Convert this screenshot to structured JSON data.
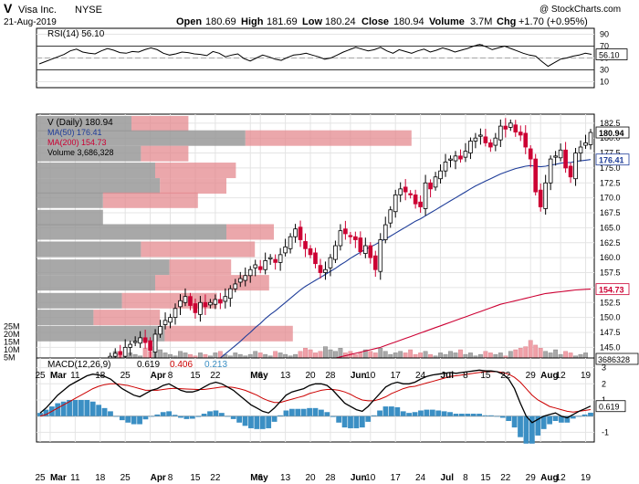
{
  "chart_data": {
    "type": "candlestick",
    "header": {
      "symbol": "V",
      "name": "Visa Inc.",
      "exchange": "NYSE",
      "date": "21-Aug-2019",
      "source": "@ StockCharts.com",
      "open_label": "Open",
      "open": "180.69",
      "high_label": "High",
      "high": "181.69",
      "low_label": "Low",
      "low": "180.24",
      "close_label": "Close",
      "close": "180.94",
      "volume_label": "Volume",
      "volume": "3.7M",
      "chg_label": "Chg",
      "chg": "+1.70 (+0.95%)"
    },
    "colors": {
      "up": "#000000",
      "down": "#cc0033",
      "ma50": "#1f3d99",
      "ma200": "#cc0033",
      "volume_up": "#a9a9a9",
      "volume_down": "#f0a0a8",
      "macd_hist": "#3b8fc4",
      "macd_line": "#000000",
      "macd_signal": "#cc0000",
      "vbp_up": "#999999",
      "vbp_down": "#e48a8f",
      "grid": "#e4e4e4"
    },
    "rsi": {
      "label": "RSI(14) 56.10",
      "value": "56.10",
      "ticks": [
        90,
        70,
        50,
        30,
        10
      ],
      "overbought": 70,
      "oversold": 30,
      "ylim": [
        0,
        100
      ],
      "values": [
        40,
        44,
        48,
        52,
        56,
        62,
        65,
        60,
        58,
        57,
        62,
        66,
        63,
        59,
        58,
        61,
        60,
        64,
        67,
        64,
        58,
        55,
        57,
        60,
        59,
        57,
        56,
        54,
        61,
        58,
        52,
        55,
        57,
        49,
        45,
        50,
        55,
        52,
        48,
        46,
        51,
        55,
        56,
        58,
        55,
        52,
        48,
        50,
        55,
        60,
        64,
        68,
        65,
        62,
        64,
        68,
        62,
        58,
        64,
        61,
        58,
        62,
        65,
        60,
        63,
        67,
        64,
        60,
        63,
        66,
        70,
        73,
        69,
        64,
        67,
        70,
        66,
        62,
        58,
        55,
        53,
        44,
        36,
        42,
        48,
        50,
        53,
        55,
        58,
        56.1
      ]
    },
    "price": {
      "label": "V (Daily) 180.94",
      "ma50_label": "MA(50) 176.41",
      "ma200_label": "MA(200) 154.73",
      "volume_label": "Volume 3,686,328",
      "ylim": [
        142,
        184
      ],
      "ticks": [
        182.5,
        180.0,
        177.5,
        175.0,
        172.5,
        170.0,
        167.5,
        165.0,
        162.5,
        160.0,
        157.5,
        155.0,
        152.5,
        150.0,
        147.5,
        145.0
      ],
      "tick_labels": [
        "182.5",
        "180.0",
        "177.5",
        "175.0",
        "172.5",
        "170.0",
        "167.5",
        "165.0",
        "162.5",
        "160.0",
        "157.5",
        "155.0",
        "152.5",
        "150.0",
        "147.5",
        "145.0"
      ],
      "last_price": "180.94",
      "last_ma50": "176.41",
      "last_ma200": "154.73",
      "last_volume": "3686328",
      "closes": [
        143.5,
        144.0,
        143.8,
        145.0,
        145.5,
        146.0,
        146.6,
        145.8,
        144.5,
        147.2,
        148.5,
        149.5,
        150.0,
        151.5,
        152.8,
        153.5,
        152.0,
        150.8,
        152.5,
        151.8,
        152.5,
        153.0,
        152.4,
        153.5,
        154.8,
        155.6,
        156.5,
        157.0,
        158.0,
        158.8,
        158.0,
        159.5,
        160.0,
        159.2,
        160.5,
        161.8,
        163.5,
        164.8,
        163.0,
        161.5,
        160.5,
        159.0,
        157.5,
        158.0,
        160.0,
        162.0,
        164.5,
        164.0,
        163.5,
        163.0,
        161.0,
        162.0,
        160.0,
        158.0,
        163.0,
        165.5,
        168.0,
        170.5,
        171.5,
        171.0,
        170.5,
        169.0,
        168.5,
        172.5,
        171.5,
        173.5,
        174.5,
        176.0,
        176.5,
        177.0,
        176.5,
        177.8,
        179.5,
        180.0,
        180.5,
        179.2,
        178.5,
        180.0,
        182.0,
        181.5,
        182.5,
        181.0,
        180.5,
        178.5,
        176.5,
        171.0,
        168.5,
        172.5,
        176.5,
        177.0,
        178.0,
        175.0,
        173.5,
        177.5,
        178.5,
        179.2,
        180.94
      ],
      "ma50": [
        126.5,
        127.3,
        128.1,
        128.9,
        129.6,
        130.4,
        131.2,
        131.9,
        132.6,
        133.4,
        134.2,
        135.0,
        135.8,
        136.6,
        137.4,
        138.2,
        139.0,
        139.7,
        140.5,
        141.2,
        141.9,
        142.6,
        143.2,
        143.9,
        144.6,
        145.3,
        146.0,
        146.8,
        147.5,
        148.3,
        149.0,
        149.8,
        150.5,
        151.1,
        151.8,
        152.5,
        153.2,
        153.9,
        154.6,
        155.2,
        155.7,
        156.2,
        156.7,
        157.2,
        157.7,
        158.2,
        158.8,
        159.3,
        159.9,
        160.4,
        160.9,
        161.4,
        161.8,
        162.2,
        162.7,
        163.1,
        163.6,
        164.1,
        164.6,
        165.1,
        165.6,
        166.1,
        166.5,
        167.0,
        167.5,
        168.0,
        168.5,
        169.0,
        169.5,
        170.0,
        170.5,
        171.0,
        171.5,
        172.0,
        172.4,
        172.8,
        173.2,
        173.6,
        174.0,
        174.3,
        174.6,
        174.9,
        175.1,
        175.3,
        175.4,
        175.3,
        175.2,
        175.3,
        175.5,
        175.6,
        175.8,
        175.9,
        175.9,
        176.1,
        176.2,
        176.3,
        176.41
      ],
      "ma200": [
        138.6,
        138.7,
        138.8,
        138.9,
        139.0,
        139.1,
        139.2,
        139.3,
        139.4,
        139.5,
        139.6,
        139.7,
        139.8,
        139.9,
        140.0,
        140.1,
        140.2,
        140.3,
        140.4,
        140.5,
        140.6,
        140.7,
        140.8,
        140.9,
        141.0,
        141.1,
        141.2,
        141.3,
        141.4,
        141.5,
        141.6,
        141.7,
        141.8,
        141.9,
        142.0,
        142.1,
        142.2,
        142.3,
        142.4,
        142.5,
        142.6,
        142.7,
        142.8,
        142.9,
        143.0,
        143.2,
        143.4,
        143.6,
        143.8,
        144.0,
        144.2,
        144.4,
        144.6,
        144.8,
        145.0,
        145.3,
        145.6,
        145.9,
        146.2,
        146.5,
        146.8,
        147.1,
        147.4,
        147.7,
        148.0,
        148.3,
        148.6,
        148.9,
        149.2,
        149.5,
        149.8,
        150.1,
        150.4,
        150.7,
        151.0,
        151.3,
        151.6,
        151.9,
        152.2,
        152.4,
        152.6,
        152.8,
        153.0,
        153.2,
        153.4,
        153.6,
        153.8,
        154.0,
        154.1,
        154.2,
        154.3,
        154.4,
        154.5,
        154.6,
        154.65,
        154.7,
        154.73
      ],
      "volume_ticks": [
        "25M",
        "20M",
        "15M",
        "10M",
        "5M"
      ],
      "volume_tick_values": [
        25,
        20,
        15,
        10,
        5
      ],
      "volume_max_m": 30,
      "volumes_m": [
        9,
        7,
        6,
        8,
        7,
        6,
        11,
        9,
        12,
        10,
        8,
        7,
        6,
        9,
        8,
        7,
        6,
        8,
        7,
        6,
        8,
        9,
        7,
        6,
        8,
        7,
        6,
        7,
        9,
        8,
        7,
        6,
        9,
        8,
        7,
        6,
        7,
        9,
        11,
        10,
        8,
        9,
        12,
        10,
        9,
        11,
        8,
        9,
        7,
        8,
        10,
        9,
        8,
        11,
        9,
        7,
        8,
        9,
        8,
        10,
        7,
        8,
        9,
        7,
        6,
        8,
        7,
        9,
        8,
        10,
        7,
        8,
        6,
        7,
        9,
        8,
        7,
        8,
        6,
        9,
        10,
        11,
        12,
        16,
        13,
        11,
        9,
        8,
        10,
        7,
        9,
        8,
        6,
        7,
        8,
        4
      ],
      "volume_by_price": [
        {
          "price": 182.4,
          "up": 20,
          "down": 12
        },
        {
          "price": 180.0,
          "up": 44,
          "down": 35
        },
        {
          "price": 177.4,
          "up": 22,
          "down": 10
        },
        {
          "price": 174.6,
          "up": 25,
          "down": 17
        },
        {
          "price": 172.0,
          "up": 26,
          "down": 14
        },
        {
          "price": 169.6,
          "up": 14,
          "down": 20
        },
        {
          "price": 166.7,
          "up": 14,
          "down": 0
        },
        {
          "price": 164.3,
          "up": 40,
          "down": 10
        },
        {
          "price": 161.4,
          "up": 22,
          "down": 24
        },
        {
          "price": 158.4,
          "up": 28,
          "down": 13
        },
        {
          "price": 155.8,
          "up": 25,
          "down": 24
        },
        {
          "price": 152.8,
          "up": 18,
          "down": 20
        },
        {
          "price": 150.0,
          "up": 12,
          "down": 14
        },
        {
          "price": 147.3,
          "up": 27,
          "down": 27
        }
      ],
      "x_ticks": [
        {
          "i": 0,
          "label": "25"
        },
        {
          "i": 2,
          "label": "Mar"
        },
        {
          "i": 7,
          "label": "11"
        },
        {
          "i": 12,
          "label": "18"
        },
        {
          "i": 17,
          "label": "25"
        },
        {
          "i": 22,
          "label": "Apr"
        },
        {
          "i": 26,
          "label": "8"
        },
        {
          "i": 31,
          "label": "15"
        },
        {
          "i": 35,
          "label": "22"
        },
        {
          "i": 42,
          "label": "May"
        },
        {
          "i": 44,
          "label": "6"
        },
        {
          "i": 49,
          "label": "13"
        },
        {
          "i": 54,
          "label": "20"
        },
        {
          "i": 58,
          "label": "28"
        },
        {
          "i": 62,
          "label": "Jun"
        },
        {
          "i": 66,
          "label": "10"
        },
        {
          "i": 71,
          "label": "17"
        },
        {
          "i": 76,
          "label": "24"
        },
        {
          "i": 80,
          "label": "Jul"
        },
        {
          "i": 85,
          "label": "8"
        },
        {
          "i": 89,
          "label": "15"
        },
        {
          "i": 93,
          "label": "22"
        },
        {
          "i": 98,
          "label": "29"
        },
        {
          "i": 100,
          "label": "Aug"
        },
        {
          "i": 104,
          "label": "12"
        },
        {
          "i": 109,
          "label": "19"
        }
      ],
      "bold_x_ticks": [
        "Mar",
        "Apr",
        "May",
        "Jun",
        "Jul",
        "Aug"
      ]
    },
    "macd": {
      "label": "MACD(12,26,9)",
      "macd": "0.619",
      "signal": "0.406",
      "hist": "0.213",
      "last_macd": "0.619",
      "ylim": [
        -1.6,
        3.6
      ],
      "ticks": [
        3,
        2,
        1,
        0,
        -1
      ],
      "tick_labels": [
        "3",
        "2",
        "1",
        "",
        "-1"
      ],
      "macd_values": [
        0.2,
        0.5,
        0.9,
        1.3,
        1.6,
        1.9,
        2.1,
        2.3,
        2.5,
        2.6,
        2.55,
        2.45,
        2.3,
        2.0,
        1.7,
        1.5,
        1.3,
        1.2,
        1.4,
        1.6,
        1.7,
        1.9,
        2.0,
        1.8,
        1.6,
        1.5,
        1.5,
        1.6,
        1.8,
        2.0,
        2.1,
        2.0,
        1.8,
        1.6,
        1.3,
        1.0,
        0.7,
        0.5,
        0.3,
        0.2,
        0.5,
        0.9,
        1.3,
        1.5,
        1.6,
        1.7,
        1.9,
        2.0,
        2.0,
        1.9,
        1.6,
        1.2,
        0.8,
        0.6,
        0.4,
        0.3,
        0.6,
        1.0,
        1.4,
        1.8,
        2.0,
        2.1,
        2.0,
        2.0,
        2.1,
        2.3,
        2.45,
        2.55,
        2.6,
        2.65,
        2.7,
        2.65,
        2.7,
        2.75,
        2.8,
        2.85,
        2.8,
        2.8,
        2.75,
        2.6,
        2.3,
        1.7,
        0.8,
        0.0,
        -0.4,
        -0.2,
        0.0,
        0.1,
        0.2,
        0.0,
        -0.1,
        0.1,
        0.3,
        0.45,
        0.619
      ],
      "signal_values": [
        0.0,
        0.1,
        0.3,
        0.5,
        0.7,
        0.9,
        1.1,
        1.3,
        1.5,
        1.7,
        1.85,
        1.95,
        2.0,
        2.0,
        1.95,
        1.9,
        1.8,
        1.7,
        1.6,
        1.6,
        1.6,
        1.65,
        1.7,
        1.72,
        1.7,
        1.68,
        1.66,
        1.65,
        1.65,
        1.7,
        1.75,
        1.8,
        1.8,
        1.78,
        1.7,
        1.6,
        1.45,
        1.3,
        1.1,
        0.95,
        0.85,
        0.85,
        0.95,
        1.05,
        1.15,
        1.25,
        1.4,
        1.5,
        1.6,
        1.65,
        1.65,
        1.6,
        1.5,
        1.35,
        1.15,
        1.0,
        0.95,
        0.95,
        1.05,
        1.2,
        1.4,
        1.55,
        1.7,
        1.8,
        1.85,
        1.95,
        2.05,
        2.15,
        2.25,
        2.35,
        2.45,
        2.5,
        2.55,
        2.6,
        2.65,
        2.7,
        2.75,
        2.75,
        2.75,
        2.7,
        2.6,
        2.4,
        2.1,
        1.7,
        1.3,
        1.0,
        0.8,
        0.6,
        0.5,
        0.4,
        0.3,
        0.25,
        0.3,
        0.35,
        0.406
      ]
    }
  }
}
